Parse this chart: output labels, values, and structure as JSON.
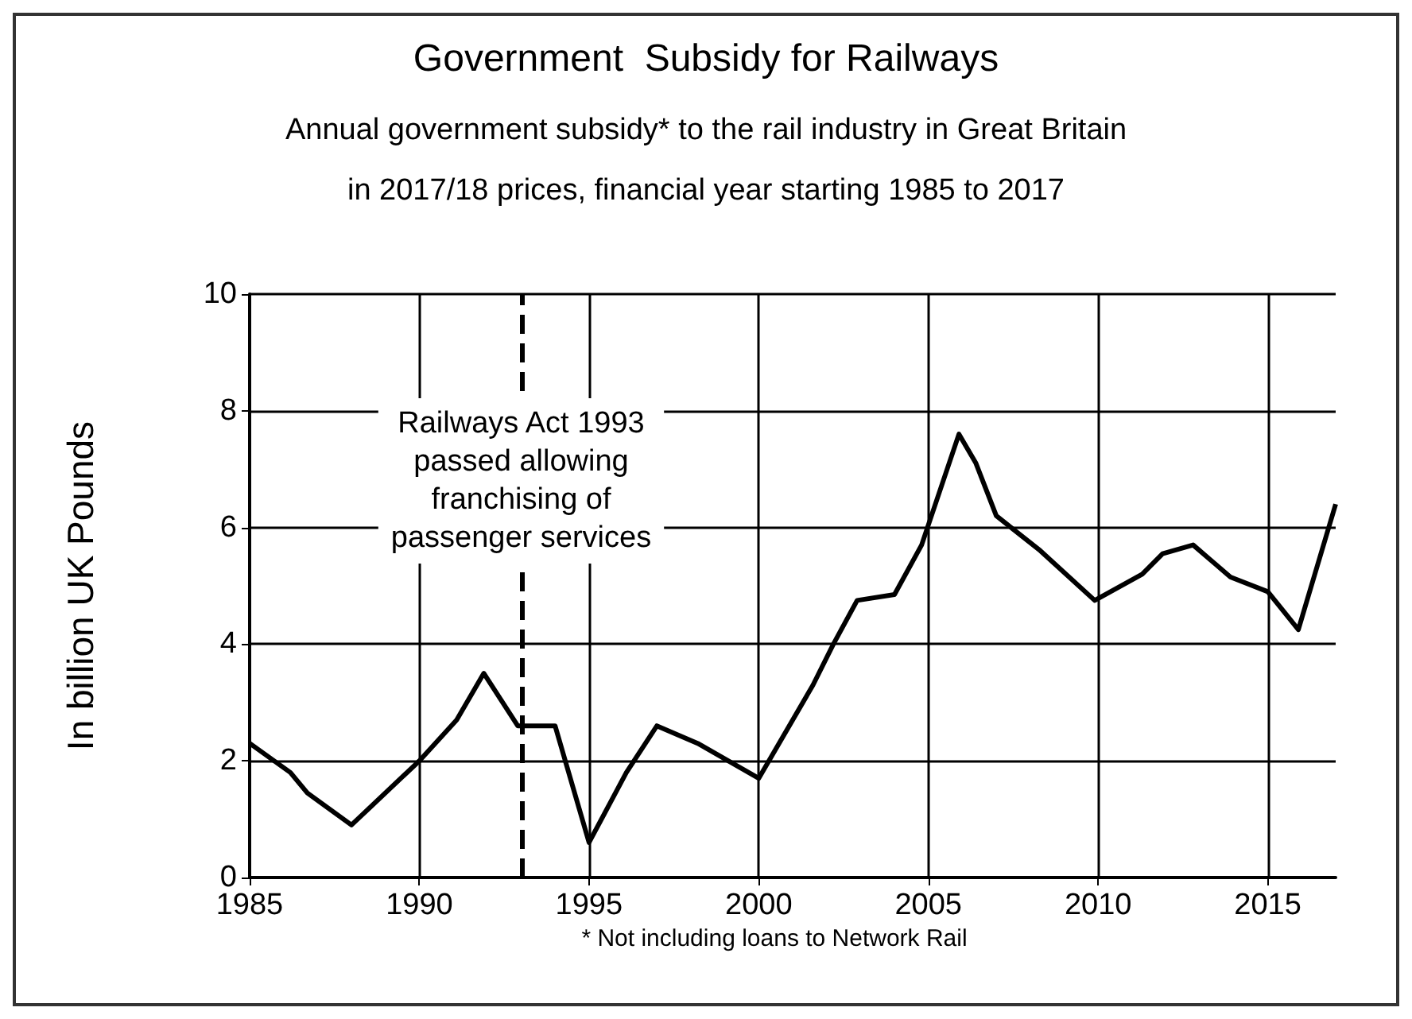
{
  "chart_data": {
    "type": "line",
    "title": "Government  Subsidy for Railways",
    "subtitle": "Annual government subsidy* to the rail industry in Great Britain\nin 2017/18 prices, financial year starting 1985 to 2017",
    "ylabel": "In billion UK Pounds",
    "x": [
      1985,
      1986.2,
      1986.7,
      1988,
      1990,
      1991.1,
      1991.9,
      1992.9,
      1994,
      1995,
      1996.1,
      1997,
      1998.2,
      2000,
      2001.6,
      2002.2,
      2002.9,
      2004,
      2004.8,
      2005.9,
      2006.4,
      2007,
      2008.3,
      2009.9,
      2011.3,
      2011.9,
      2012.8,
      2013.9,
      2015,
      2015.9,
      2017
    ],
    "series": [
      {
        "color": "#000000",
        "values": [
          2.3,
          1.8,
          1.45,
          0.9,
          2.0,
          2.7,
          3.5,
          2.6,
          2.6,
          0.6,
          1.8,
          2.6,
          2.3,
          1.7,
          3.3,
          4.0,
          4.75,
          4.85,
          5.7,
          7.6,
          7.1,
          6.2,
          5.6,
          4.75,
          5.2,
          5.55,
          5.7,
          5.15,
          4.9,
          4.25,
          6.4
        ]
      }
    ],
    "xlim": [
      1985,
      2017
    ],
    "xticks": [
      1985,
      1990,
      1995,
      2000,
      2005,
      2010,
      2015
    ],
    "ylim": [
      0,
      10
    ],
    "yticks": [
      0,
      2,
      4,
      6,
      8,
      10
    ],
    "grid": true,
    "marker": "none",
    "line_style": "solid",
    "ref_lines": [
      {
        "axis": "x",
        "value": 1993,
        "line_style": "dashed",
        "color": "#000000"
      }
    ],
    "annotations": [
      {
        "text": "Railways Act 1993\npassed allowing\nfranchising of\npassenger services",
        "x": 1993,
        "y": 6.8
      },
      "* Not including loans to Network Rail"
    ]
  }
}
